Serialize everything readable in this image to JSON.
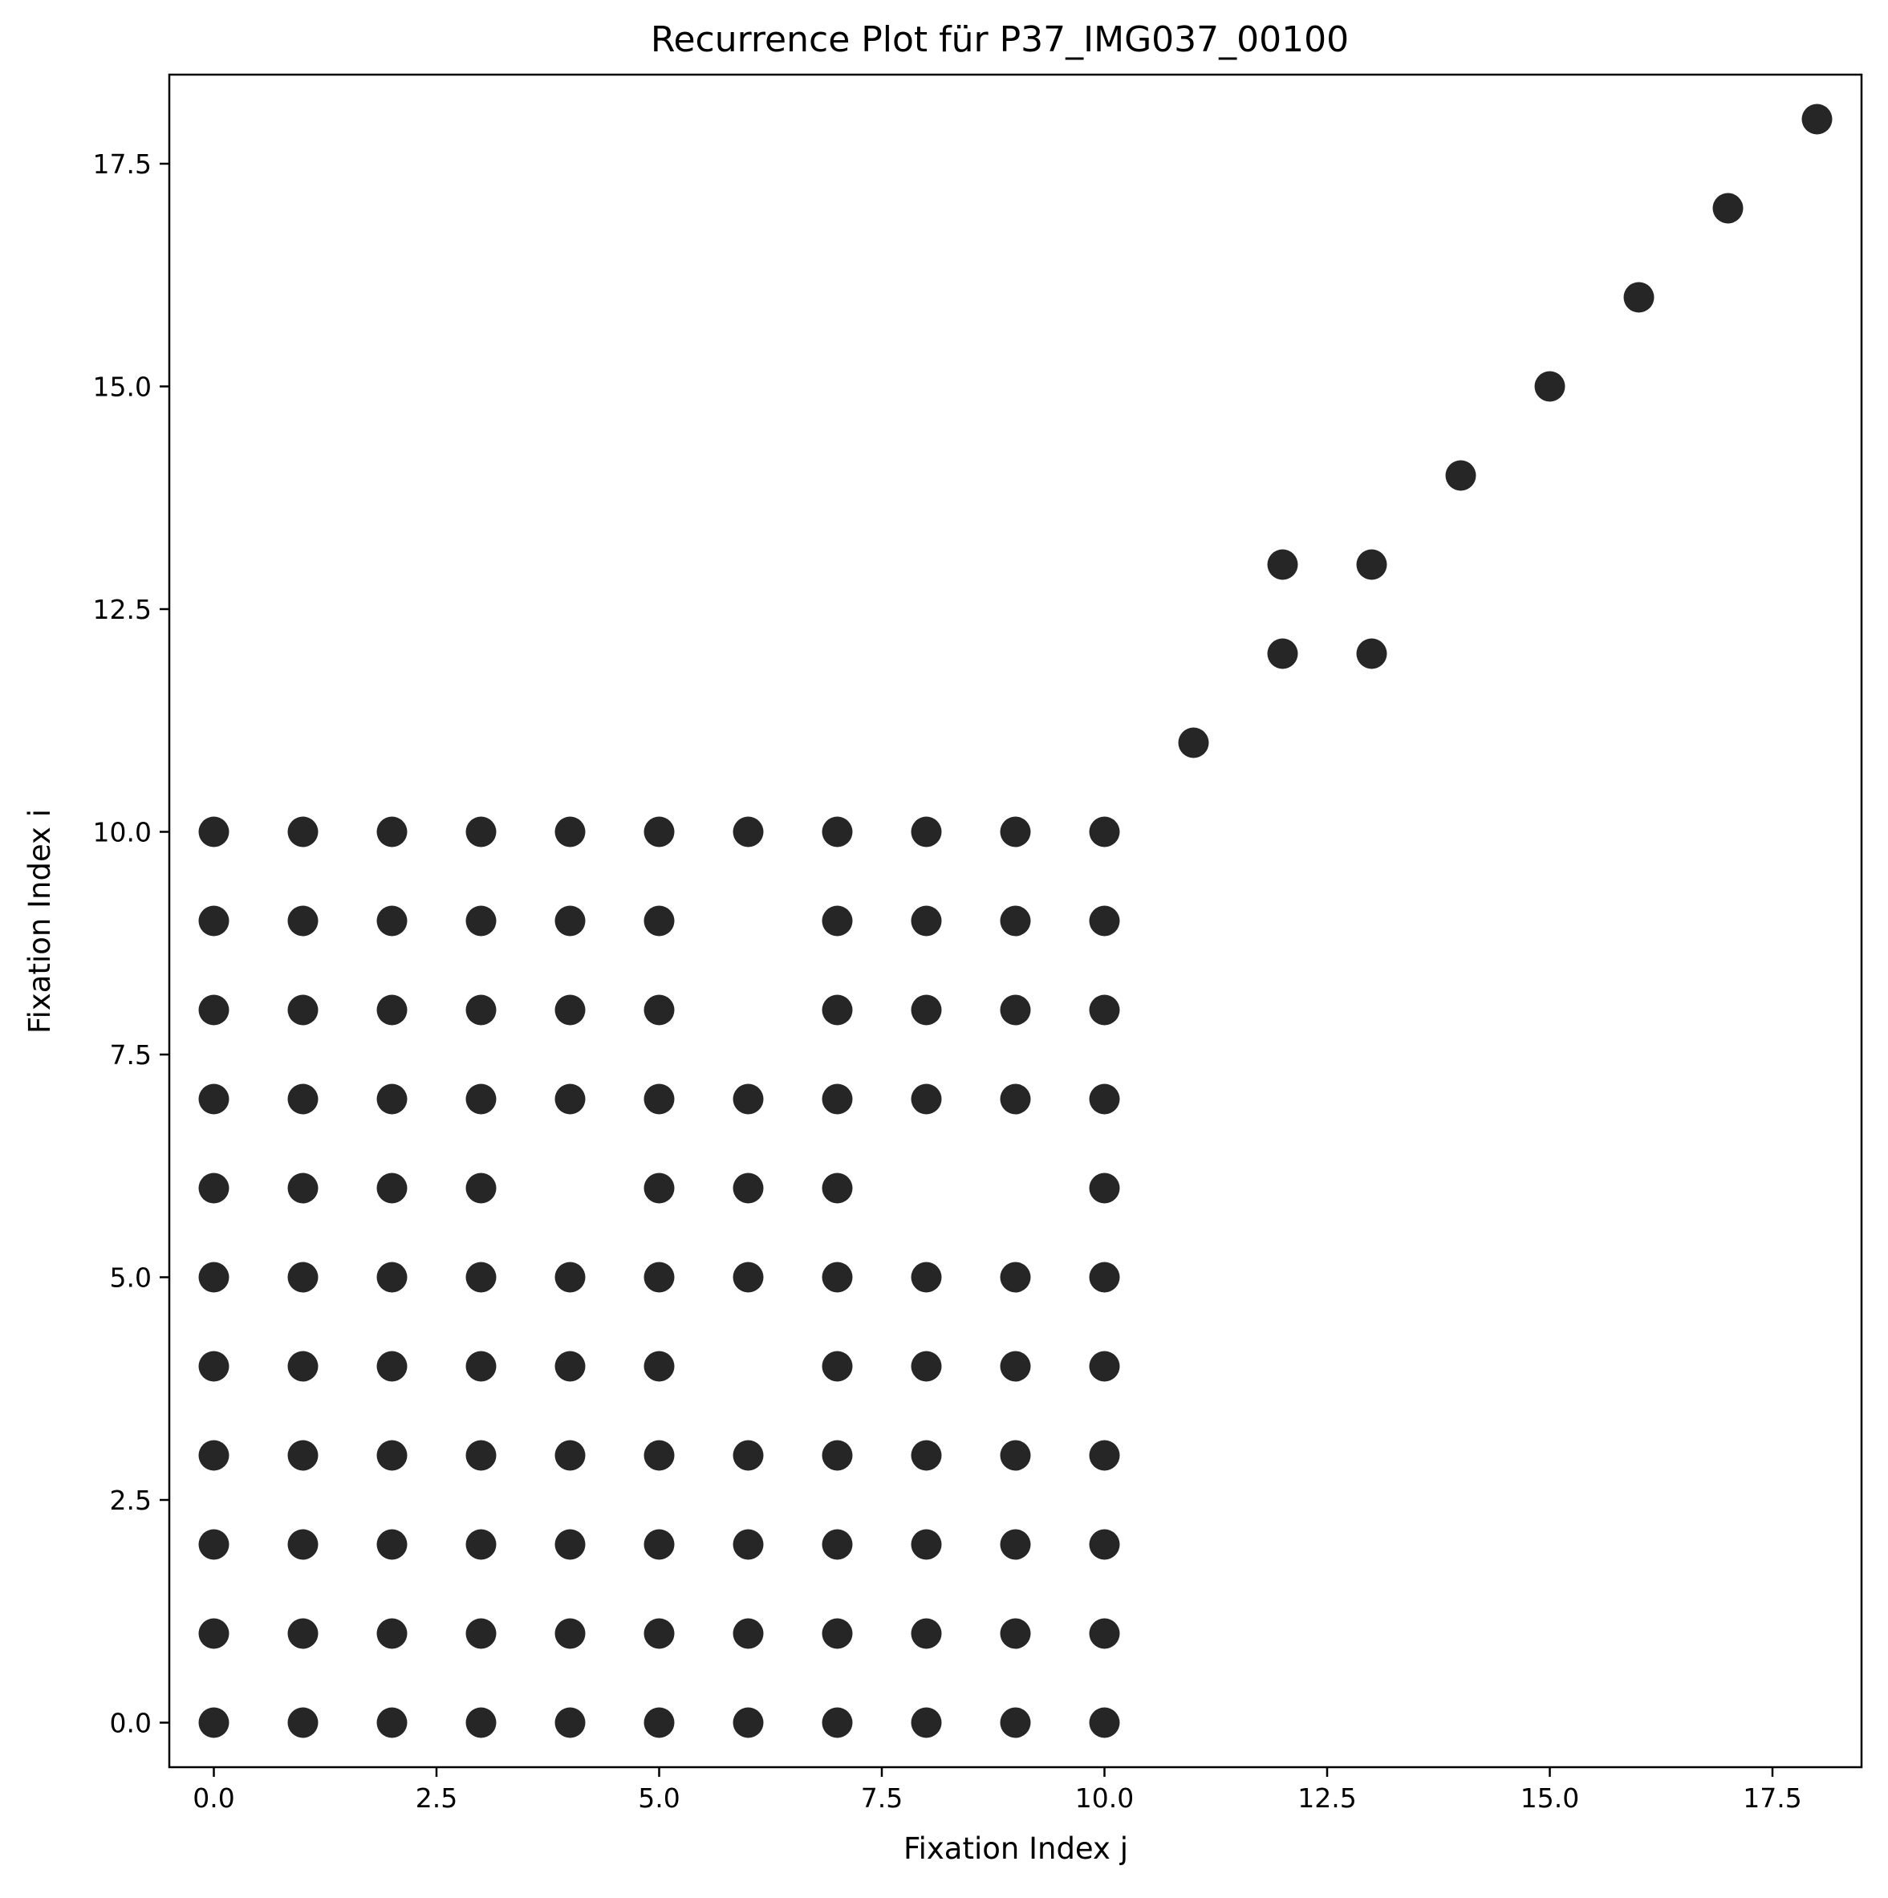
{
  "chart_data": {
    "type": "scatter",
    "title": "Recurrence Plot für P37_IMG037_00100",
    "xlabel": "Fixation Index j",
    "ylabel": "Fixation Index i",
    "xlim": [
      -0.5,
      18.5
    ],
    "ylim": [
      -0.5,
      18.5
    ],
    "xticks": [
      "0.0",
      "2.5",
      "5.0",
      "7.5",
      "10.0",
      "12.5",
      "15.0",
      "17.5"
    ],
    "yticks": [
      "0.0",
      "2.5",
      "5.0",
      "7.5",
      "10.0",
      "12.5",
      "15.0",
      "17.5"
    ],
    "grid": false,
    "marker_color": "#262626",
    "rows": [
      {
        "i": 0,
        "j": [
          0,
          1,
          2,
          3,
          4,
          5,
          6,
          7,
          8,
          9,
          10
        ]
      },
      {
        "i": 1,
        "j": [
          0,
          1,
          2,
          3,
          4,
          5,
          6,
          7,
          8,
          9,
          10
        ]
      },
      {
        "i": 2,
        "j": [
          0,
          1,
          2,
          3,
          4,
          5,
          6,
          7,
          8,
          9,
          10
        ]
      },
      {
        "i": 3,
        "j": [
          0,
          1,
          2,
          3,
          4,
          5,
          6,
          7,
          8,
          9,
          10
        ]
      },
      {
        "i": 4,
        "j": [
          0,
          1,
          2,
          3,
          4,
          5,
          7,
          8,
          9,
          10
        ]
      },
      {
        "i": 5,
        "j": [
          0,
          1,
          2,
          3,
          4,
          5,
          6,
          7,
          8,
          9,
          10
        ]
      },
      {
        "i": 6,
        "j": [
          0,
          1,
          2,
          3,
          5,
          6,
          7,
          10
        ]
      },
      {
        "i": 7,
        "j": [
          0,
          1,
          2,
          3,
          4,
          5,
          6,
          7,
          8,
          9,
          10
        ]
      },
      {
        "i": 8,
        "j": [
          0,
          1,
          2,
          3,
          4,
          5,
          7,
          8,
          9,
          10
        ]
      },
      {
        "i": 9,
        "j": [
          0,
          1,
          2,
          3,
          4,
          5,
          7,
          8,
          9,
          10
        ]
      },
      {
        "i": 10,
        "j": [
          0,
          1,
          2,
          3,
          4,
          5,
          6,
          7,
          8,
          9,
          10
        ]
      },
      {
        "i": 11,
        "j": [
          11
        ]
      },
      {
        "i": 12,
        "j": [
          12,
          13
        ]
      },
      {
        "i": 13,
        "j": [
          12,
          13
        ]
      },
      {
        "i": 14,
        "j": [
          14
        ]
      },
      {
        "i": 15,
        "j": [
          15
        ]
      },
      {
        "i": 16,
        "j": [
          16
        ]
      },
      {
        "i": 17,
        "j": [
          17
        ]
      },
      {
        "i": 18,
        "j": [
          18
        ]
      }
    ]
  }
}
